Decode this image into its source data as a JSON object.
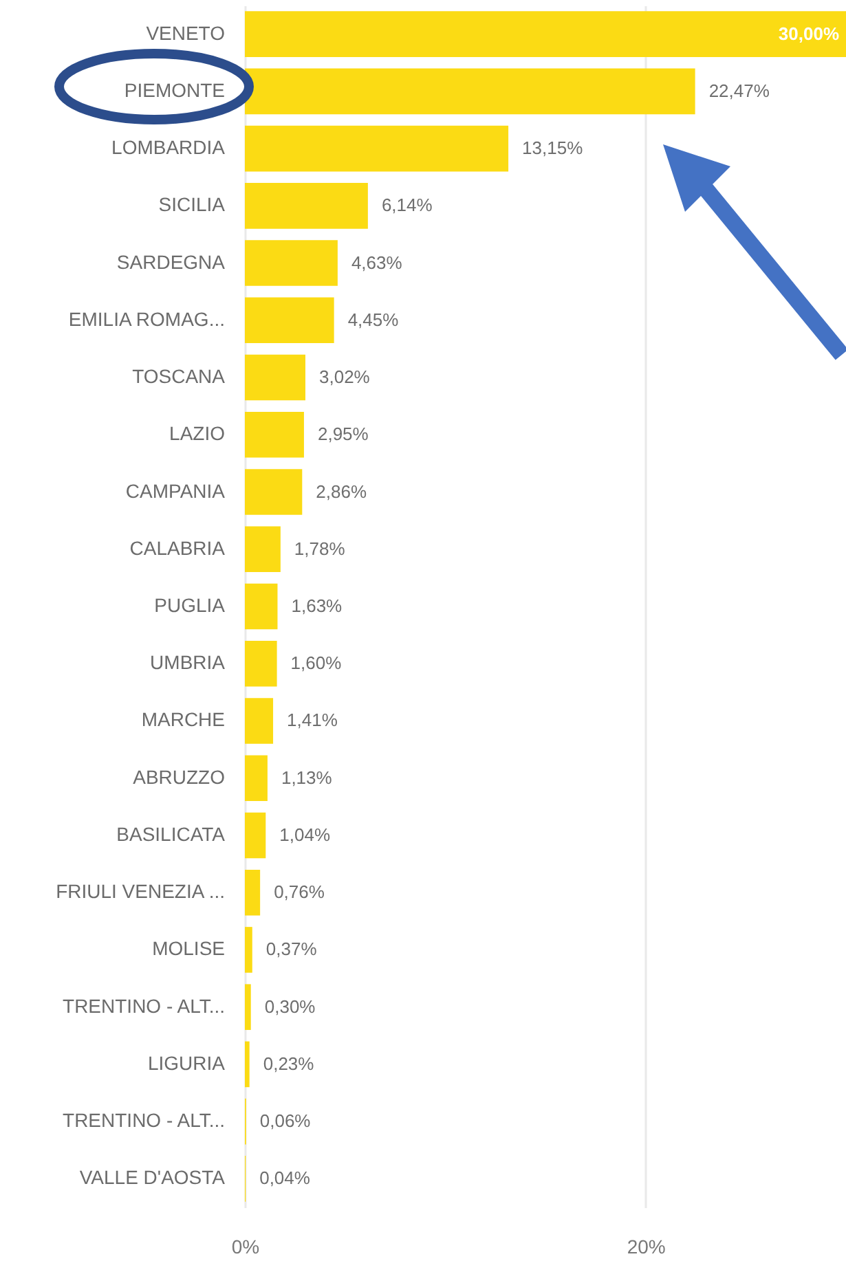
{
  "chart_data": {
    "type": "bar",
    "orientation": "horizontal",
    "categories": [
      "VENETO",
      "PIEMONTE",
      "LOMBARDIA",
      "SICILIA",
      "SARDEGNA",
      "EMILIA ROMAG...",
      "TOSCANA",
      "LAZIO",
      "CAMPANIA",
      "CALABRIA",
      "PUGLIA",
      "UMBRIA",
      "MARCHE",
      "ABRUZZO",
      "BASILICATA",
      "FRIULI VENEZIA ...",
      "MOLISE",
      "TRENTINO - ALT...",
      "LIGURIA",
      "TRENTINO - ALT...",
      "VALLE D'AOSTA"
    ],
    "values": [
      30.0,
      22.47,
      13.15,
      6.14,
      4.63,
      4.45,
      3.02,
      2.95,
      2.86,
      1.78,
      1.63,
      1.6,
      1.41,
      1.13,
      1.04,
      0.76,
      0.37,
      0.3,
      0.23,
      0.06,
      0.04
    ],
    "value_labels": [
      "30,00%",
      "22,47%",
      "13,15%",
      "6,14%",
      "4,63%",
      "4,45%",
      "3,02%",
      "2,95%",
      "2,86%",
      "1,78%",
      "1,63%",
      "1,60%",
      "1,41%",
      "1,13%",
      "1,04%",
      "0,76%",
      "0,37%",
      "0,30%",
      "0,23%",
      "0,06%",
      "0,04%"
    ],
    "color": "#fbdb14",
    "xlim": [
      0,
      30
    ],
    "xticks": [
      {
        "value": 0,
        "label": "0%"
      },
      {
        "value": 20,
        "label": "20%"
      }
    ],
    "grid": "x"
  }
}
